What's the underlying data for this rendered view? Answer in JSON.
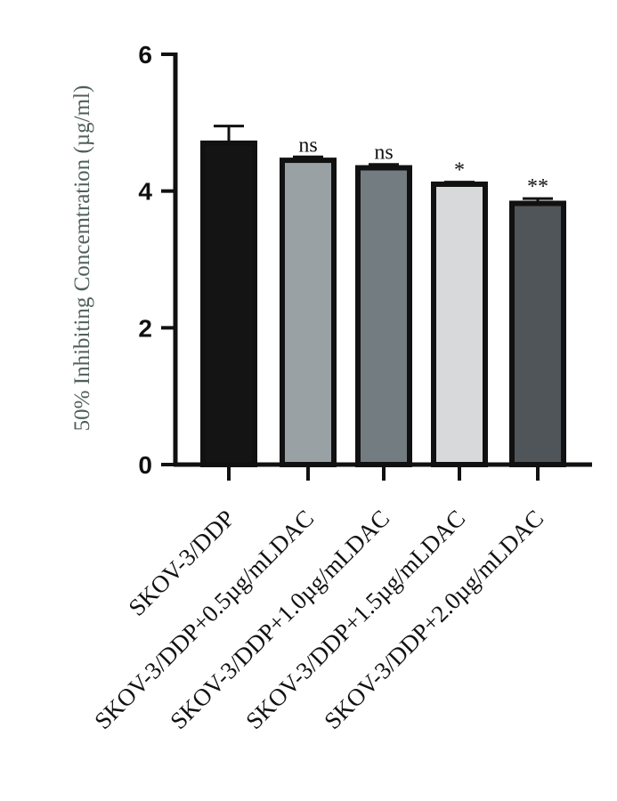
{
  "chart_data": {
    "type": "bar",
    "title": "",
    "xlabel": "",
    "ylabel": "50% Inhibiting Concemtration (µg/ml)",
    "ylim": [
      0,
      6
    ],
    "yticks": [
      0,
      2,
      4,
      6
    ],
    "categories": [
      "SKOV-3/DDP",
      "SKOV-3/DDP+0.5µg/mLDAC",
      "SKOV-3/DDP+1.0µg/mLDAC",
      "SKOV-3/DDP+1.5µg/mLDAC",
      "SKOV-3/DDP+2.0µg/mLDAC"
    ],
    "values": [
      4.7,
      4.45,
      4.34,
      4.1,
      3.82
    ],
    "errors": [
      0.25,
      0.05,
      0.05,
      0.03,
      0.07
    ],
    "significance": [
      "",
      "ns",
      "ns",
      "*",
      "**"
    ],
    "bar_colors": [
      "#141414",
      "#9aa1a5",
      "#737c81",
      "#d7d9da",
      "#4f5558"
    ],
    "ylabel_color": "#4f5f5a",
    "grid": false,
    "legend": "none"
  }
}
